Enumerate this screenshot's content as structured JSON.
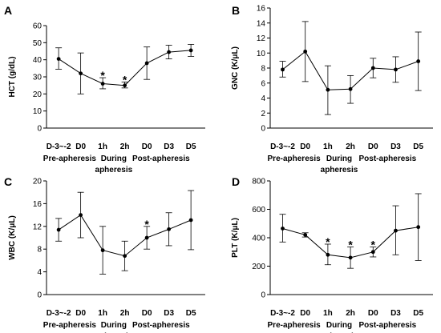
{
  "chart_data": [
    {
      "panel": "A",
      "type": "line",
      "ylabel": "HCT (g/dL)",
      "ylim": [
        0,
        60
      ],
      "yticks": [
        "0",
        "10",
        "20",
        "30",
        "40",
        "50",
        "60"
      ],
      "categories": [
        "D-3~-2",
        "D0",
        "1h",
        "2h",
        "D0",
        "D3",
        "D5"
      ],
      "groups": [
        {
          "label": "Pre-apheresis",
          "lines": [
            "Pre-apheresis"
          ]
        },
        {
          "label": "During apheresis",
          "lines": [
            "During",
            "apheresis"
          ]
        },
        {
          "label": "Post-apheresis",
          "lines": [
            "Post-apheresis"
          ]
        }
      ],
      "values": [
        40.5,
        32,
        26,
        25,
        38,
        44.5,
        45.5
      ],
      "error_low": [
        34.5,
        20,
        23,
        23.5,
        28.5,
        40.5,
        42
      ],
      "error_high": [
        47,
        44,
        29.5,
        27,
        47.5,
        48.5,
        49
      ],
      "significant": [
        false,
        false,
        true,
        true,
        false,
        false,
        false
      ],
      "marker_symbol": "*"
    },
    {
      "panel": "B",
      "type": "line",
      "ylabel": "GNC (K/μL)",
      "ylim": [
        0,
        16
      ],
      "yticks": [
        "0",
        "2",
        "4",
        "6",
        "8",
        "10",
        "12",
        "14",
        "16"
      ],
      "categories": [
        "D-3~-2",
        "D0",
        "1h",
        "2h",
        "D0",
        "D3",
        "D5"
      ],
      "groups": [
        {
          "label": "Pre-apheresis",
          "lines": [
            "Pre-apheresis"
          ]
        },
        {
          "label": "During apheresis",
          "lines": [
            "During",
            "apheresis"
          ]
        },
        {
          "label": "Post-apheresis",
          "lines": [
            "Post-apheresis"
          ]
        }
      ],
      "values": [
        7.8,
        10.2,
        5.1,
        5.2,
        8.0,
        7.8,
        8.9
      ],
      "error_low": [
        6.8,
        6.2,
        1.8,
        3.3,
        6.7,
        6.1,
        5.0
      ],
      "error_high": [
        8.9,
        14.2,
        8.3,
        7.0,
        9.3,
        9.5,
        12.8
      ],
      "significant": [
        false,
        false,
        false,
        false,
        false,
        false,
        false
      ],
      "marker_symbol": "*"
    },
    {
      "panel": "C",
      "type": "line",
      "ylabel": "WBC (K/μL)",
      "ylim": [
        0,
        20
      ],
      "yticks": [
        "0",
        "4",
        "8",
        "12",
        "16",
        "20"
      ],
      "categories": [
        "D-3~-2",
        "D0",
        "1h",
        "2h",
        "D0",
        "D3",
        "D5"
      ],
      "groups": [
        {
          "label": "Pre-apheresis",
          "lines": [
            "Pre-apheresis"
          ]
        },
        {
          "label": "During apheresis",
          "lines": [
            "During",
            "apheresis"
          ]
        },
        {
          "label": "Post-apheresis",
          "lines": [
            "Post-apheresis"
          ]
        }
      ],
      "values": [
        11.4,
        14.0,
        7.8,
        6.8,
        10.0,
        11.5,
        13.1
      ],
      "error_low": [
        9.4,
        10.0,
        3.6,
        4.2,
        8.0,
        8.6,
        7.9
      ],
      "error_high": [
        13.4,
        18.0,
        12.0,
        9.4,
        12.0,
        14.4,
        18.3
      ],
      "significant": [
        false,
        false,
        false,
        false,
        true,
        false,
        false
      ],
      "marker_symbol": "*"
    },
    {
      "panel": "D",
      "type": "line",
      "ylabel": "PLT (K/μL)",
      "ylim": [
        0,
        800
      ],
      "yticks": [
        "0",
        "200",
        "400",
        "600",
        "800"
      ],
      "categories": [
        "D-3~-2",
        "D0",
        "1h",
        "2h",
        "D0",
        "D3",
        "D5"
      ],
      "groups": [
        {
          "label": "Pre-apheresis",
          "lines": [
            "Pre-apheresis"
          ]
        },
        {
          "label": "During apheresis",
          "lines": [
            "During",
            "apheresis"
          ]
        },
        {
          "label": "Post-apheresis",
          "lines": [
            "Post-apheresis"
          ]
        }
      ],
      "values": [
        465,
        420,
        280,
        260,
        300,
        450,
        475
      ],
      "error_low": [
        370,
        405,
        210,
        185,
        265,
        280,
        240
      ],
      "error_high": [
        565,
        435,
        355,
        335,
        335,
        625,
        710
      ],
      "significant": [
        false,
        false,
        true,
        true,
        true,
        false,
        false
      ],
      "marker_symbol": "*"
    }
  ]
}
